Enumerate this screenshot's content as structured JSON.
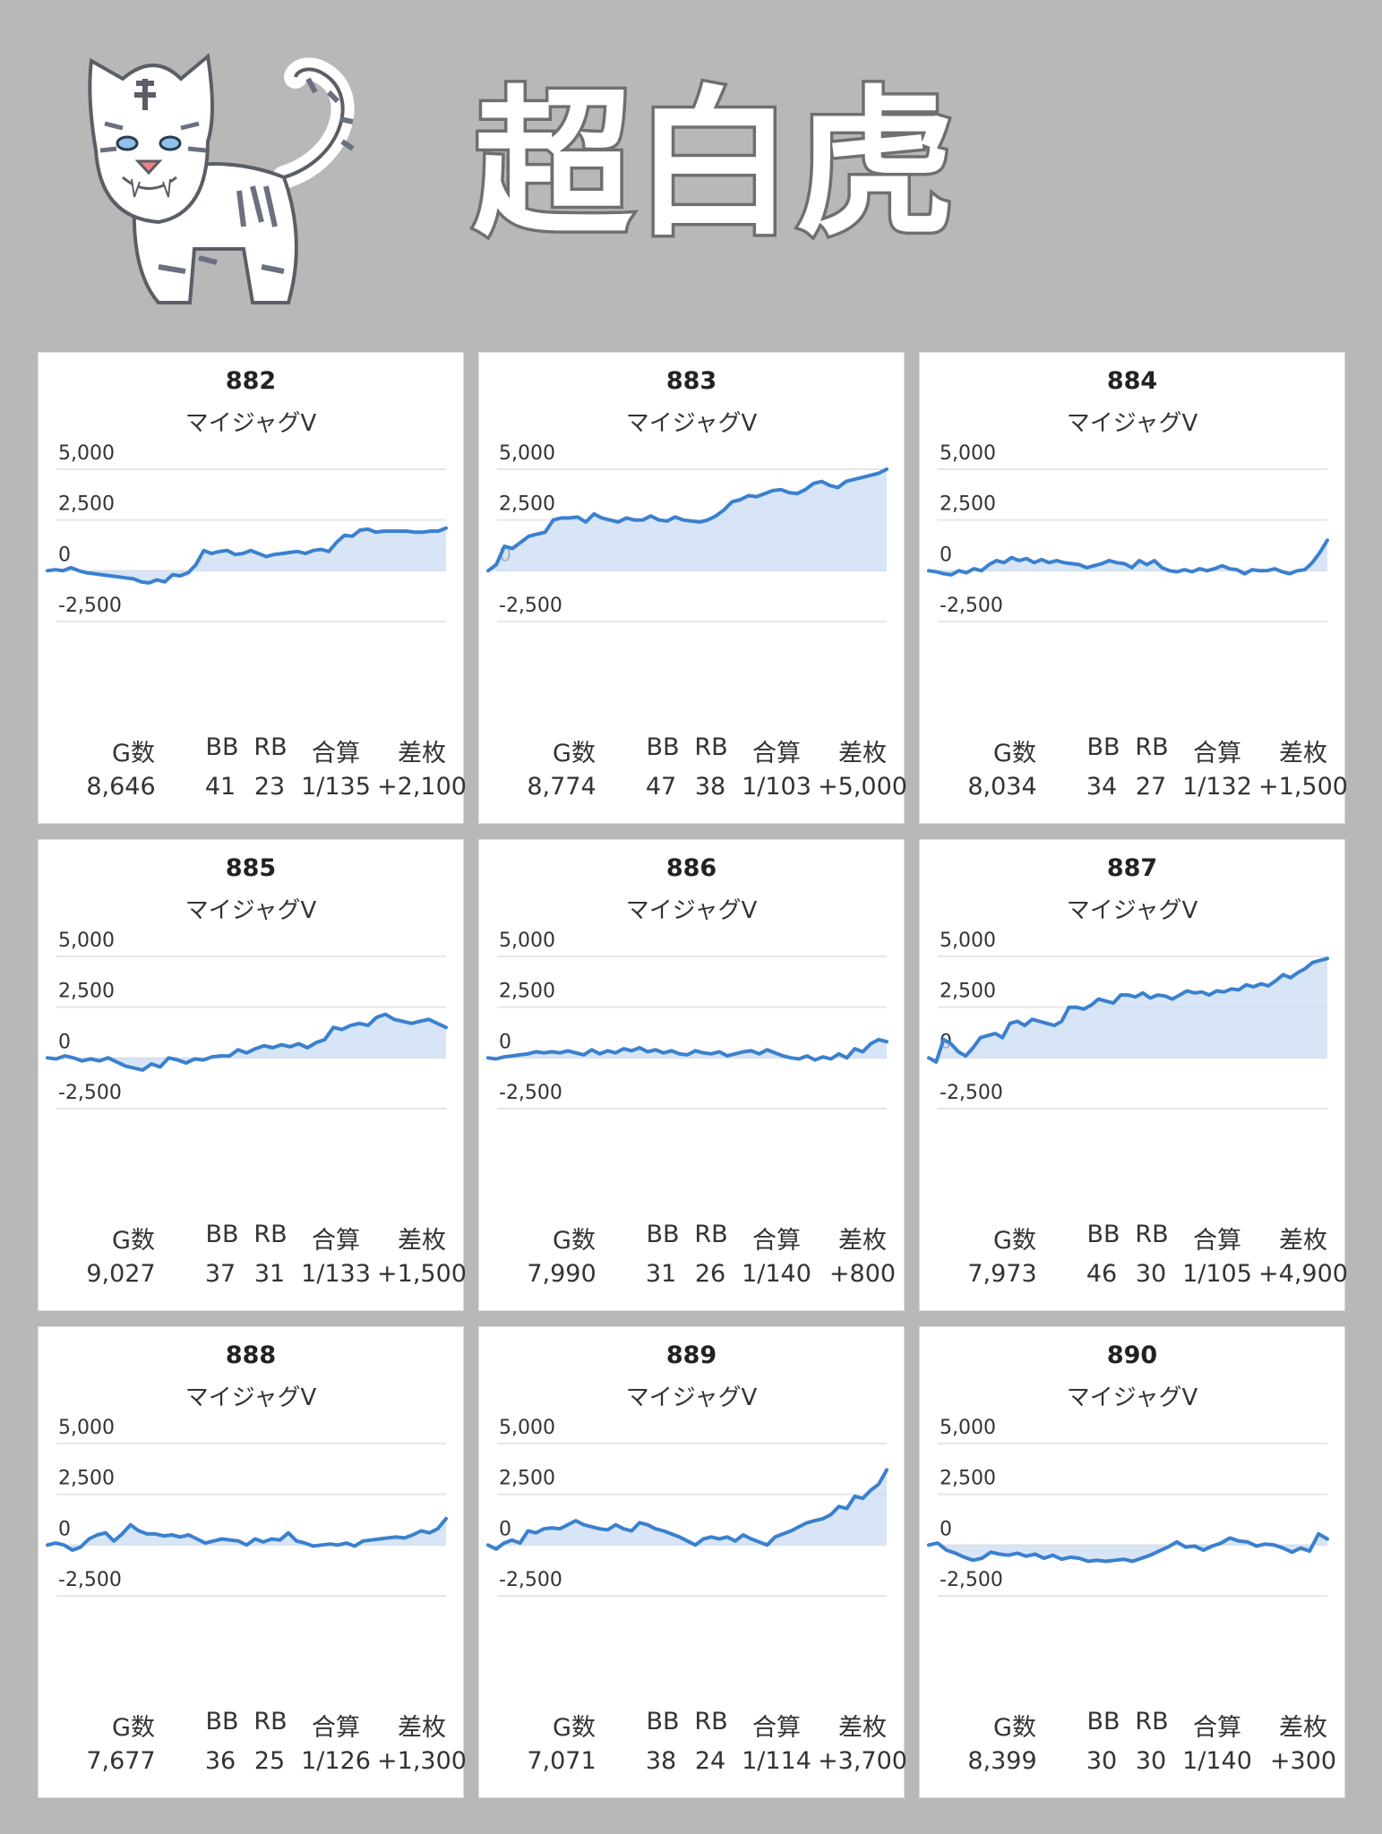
{
  "header": {
    "title": "超白虎",
    "logo_icon": "white-tiger-illustration"
  },
  "colors": {
    "background": "#b8b8b8",
    "card": "#ffffff",
    "line": "#3a80cf",
    "fill": "#c9dcf3"
  },
  "stat_headers": [
    "G数",
    "BB",
    "RB",
    "合算",
    "差枚"
  ],
  "chart_data": [
    {
      "type": "area",
      "machine_no": "882",
      "model": "マイジャグV",
      "ylim": [
        -2500,
        5000
      ],
      "yticks": [
        "5,000",
        "2,500",
        "0",
        "-2,500"
      ],
      "y": [
        0,
        50,
        0,
        150,
        0,
        -100,
        -150,
        -200,
        -250,
        -300,
        -350,
        -400,
        -550,
        -600,
        -450,
        -550,
        -200,
        -250,
        -100,
        300,
        1000,
        850,
        950,
        1000,
        800,
        850,
        1000,
        850,
        700,
        800,
        850,
        900,
        950,
        850,
        1000,
        1050,
        950,
        1400,
        1750,
        1700,
        2000,
        2050,
        1900,
        1950,
        1950,
        1950,
        1950,
        1900,
        1900,
        1950,
        1950,
        2100
      ],
      "stats": {
        "G数": "8,646",
        "BB": "41",
        "RB": "23",
        "合算": "1/135",
        "差枚": "+2,100"
      }
    },
    {
      "type": "area",
      "machine_no": "883",
      "model": "マイジャグV",
      "ylim": [
        -2500,
        5000
      ],
      "yticks": [
        "5,000",
        "2,500",
        "0",
        "-2,500"
      ],
      "y": [
        0,
        300,
        1200,
        1100,
        1400,
        1700,
        1800,
        1900,
        2500,
        2600,
        2600,
        2650,
        2400,
        2800,
        2600,
        2500,
        2400,
        2600,
        2500,
        2500,
        2700,
        2500,
        2450,
        2650,
        2500,
        2450,
        2400,
        2500,
        2700,
        3000,
        3400,
        3500,
        3700,
        3650,
        3800,
        3950,
        4000,
        3850,
        3800,
        4000,
        4300,
        4400,
        4200,
        4100,
        4400,
        4500,
        4600,
        4700,
        4800,
        5000
      ],
      "stats": {
        "G数": "8,774",
        "BB": "47",
        "RB": "38",
        "合算": "1/103",
        "差枚": "+5,000"
      }
    },
    {
      "type": "area",
      "machine_no": "884",
      "model": "マイジャグV",
      "ylim": [
        -2500,
        5000
      ],
      "yticks": [
        "5,000",
        "2,500",
        "0",
        "-2,500"
      ],
      "y": [
        0,
        -50,
        -150,
        -200,
        0,
        -100,
        100,
        0,
        300,
        500,
        400,
        650,
        500,
        600,
        400,
        550,
        400,
        500,
        400,
        350,
        300,
        150,
        250,
        350,
        500,
        400,
        350,
        150,
        500,
        300,
        500,
        150,
        0,
        -50,
        50,
        -50,
        100,
        0,
        100,
        250,
        100,
        50,
        -150,
        50,
        0,
        0,
        100,
        -50,
        -150,
        0,
        50,
        400,
        900,
        1500
      ],
      "stats": {
        "G数": "8,034",
        "BB": "34",
        "RB": "27",
        "合算": "1/132",
        "差枚": "+1,500"
      }
    },
    {
      "type": "area",
      "machine_no": "885",
      "model": "マイジャグV",
      "ylim": [
        -2500,
        5000
      ],
      "yticks": [
        "5,000",
        "2,500",
        "0",
        "-2,500"
      ],
      "y": [
        0,
        -50,
        100,
        0,
        -150,
        -50,
        -150,
        0,
        -200,
        -400,
        -500,
        -600,
        -300,
        -450,
        0,
        -100,
        -250,
        -50,
        -100,
        50,
        100,
        100,
        400,
        250,
        450,
        600,
        500,
        650,
        550,
        700,
        500,
        750,
        900,
        1500,
        1400,
        1600,
        1700,
        1600,
        2000,
        2150,
        1900,
        1800,
        1700,
        1800,
        1900,
        1700,
        1500
      ],
      "stats": {
        "G数": "9,027",
        "BB": "37",
        "RB": "31",
        "合算": "1/133",
        "差枚": "+1,500"
      }
    },
    {
      "type": "area",
      "machine_no": "886",
      "model": "マイジャグV",
      "ylim": [
        -2500,
        5000
      ],
      "yticks": [
        "5,000",
        "2,500",
        "0",
        "-2,500"
      ],
      "y": [
        0,
        -50,
        50,
        100,
        150,
        200,
        300,
        250,
        300,
        250,
        350,
        250,
        150,
        400,
        200,
        350,
        250,
        450,
        350,
        500,
        300,
        400,
        250,
        350,
        200,
        150,
        350,
        250,
        200,
        300,
        100,
        200,
        300,
        350,
        200,
        400,
        250,
        100,
        0,
        -50,
        100,
        -100,
        50,
        -50,
        200,
        0,
        450,
        300,
        700,
        900,
        800
      ],
      "stats": {
        "G数": "7,990",
        "BB": "31",
        "RB": "26",
        "合算": "1/140",
        "差枚": "+800"
      }
    },
    {
      "type": "area",
      "machine_no": "887",
      "model": "マイジャグV",
      "ylim": [
        -2500,
        5000
      ],
      "yticks": [
        "5,000",
        "2,500",
        "0",
        "-2,500"
      ],
      "y": [
        0,
        -200,
        900,
        700,
        300,
        100,
        500,
        1000,
        1100,
        1200,
        1000,
        1700,
        1800,
        1600,
        1900,
        1800,
        1700,
        1600,
        1800,
        2500,
        2500,
        2400,
        2600,
        2900,
        2800,
        2700,
        3100,
        3100,
        3000,
        3200,
        2950,
        3100,
        3050,
        2900,
        3100,
        3300,
        3200,
        3250,
        3100,
        3300,
        3250,
        3400,
        3350,
        3600,
        3500,
        3650,
        3550,
        3800,
        4100,
        3950,
        4200,
        4400,
        4700,
        4800,
        4900
      ],
      "stats": {
        "G数": "7,973",
        "BB": "46",
        "RB": "30",
        "合算": "1/105",
        "差枚": "+4,900"
      }
    },
    {
      "type": "area",
      "machine_no": "888",
      "model": "マイジャグV",
      "ylim": [
        -2500,
        5000
      ],
      "yticks": [
        "5,000",
        "2,500",
        "0",
        "-2,500"
      ],
      "y": [
        0,
        100,
        0,
        -250,
        -100,
        300,
        500,
        600,
        200,
        550,
        1000,
        700,
        550,
        550,
        450,
        500,
        400,
        500,
        300,
        100,
        200,
        300,
        250,
        200,
        0,
        300,
        150,
        300,
        250,
        600,
        200,
        100,
        -50,
        0,
        50,
        0,
        100,
        -50,
        200,
        250,
        300,
        350,
        400,
        350,
        500,
        700,
        600,
        800,
        1300
      ],
      "stats": {
        "G数": "7,677",
        "BB": "36",
        "RB": "25",
        "合算": "1/126",
        "差枚": "+1,300"
      }
    },
    {
      "type": "area",
      "machine_no": "889",
      "model": "マイジャグV",
      "ylim": [
        -2500,
        5000
      ],
      "yticks": [
        "5,000",
        "2,500",
        "0",
        "-2,500"
      ],
      "y": [
        0,
        -200,
        100,
        250,
        100,
        700,
        600,
        800,
        850,
        800,
        1000,
        1200,
        1000,
        900,
        800,
        750,
        1000,
        800,
        700,
        1100,
        1000,
        800,
        700,
        550,
        400,
        200,
        0,
        300,
        400,
        300,
        400,
        200,
        500,
        300,
        150,
        0,
        400,
        550,
        700,
        900,
        1100,
        1200,
        1300,
        1500,
        1900,
        1800,
        2400,
        2300,
        2700,
        3000,
        3700
      ],
      "stats": {
        "G数": "7,071",
        "BB": "38",
        "RB": "24",
        "合算": "1/114",
        "差枚": "+3,700"
      }
    },
    {
      "type": "area",
      "machine_no": "890",
      "model": "マイジャグV",
      "ylim": [
        -2500,
        5000
      ],
      "yticks": [
        "5,000",
        "2,500",
        "0",
        "-2,500"
      ],
      "y": [
        0,
        100,
        -250,
        -400,
        -600,
        -750,
        -650,
        -350,
        -450,
        -500,
        -400,
        -550,
        -450,
        -650,
        -500,
        -700,
        -600,
        -650,
        -800,
        -750,
        -800,
        -750,
        -700,
        -800,
        -650,
        -500,
        -300,
        -100,
        150,
        -100,
        -50,
        -250,
        -50,
        100,
        350,
        200,
        150,
        -50,
        50,
        0,
        -150,
        -350,
        -150,
        -300,
        550,
        300
      ],
      "stats": {
        "G数": "8,399",
        "BB": "30",
        "RB": "30",
        "合算": "1/140",
        "差枚": "+300"
      }
    }
  ]
}
